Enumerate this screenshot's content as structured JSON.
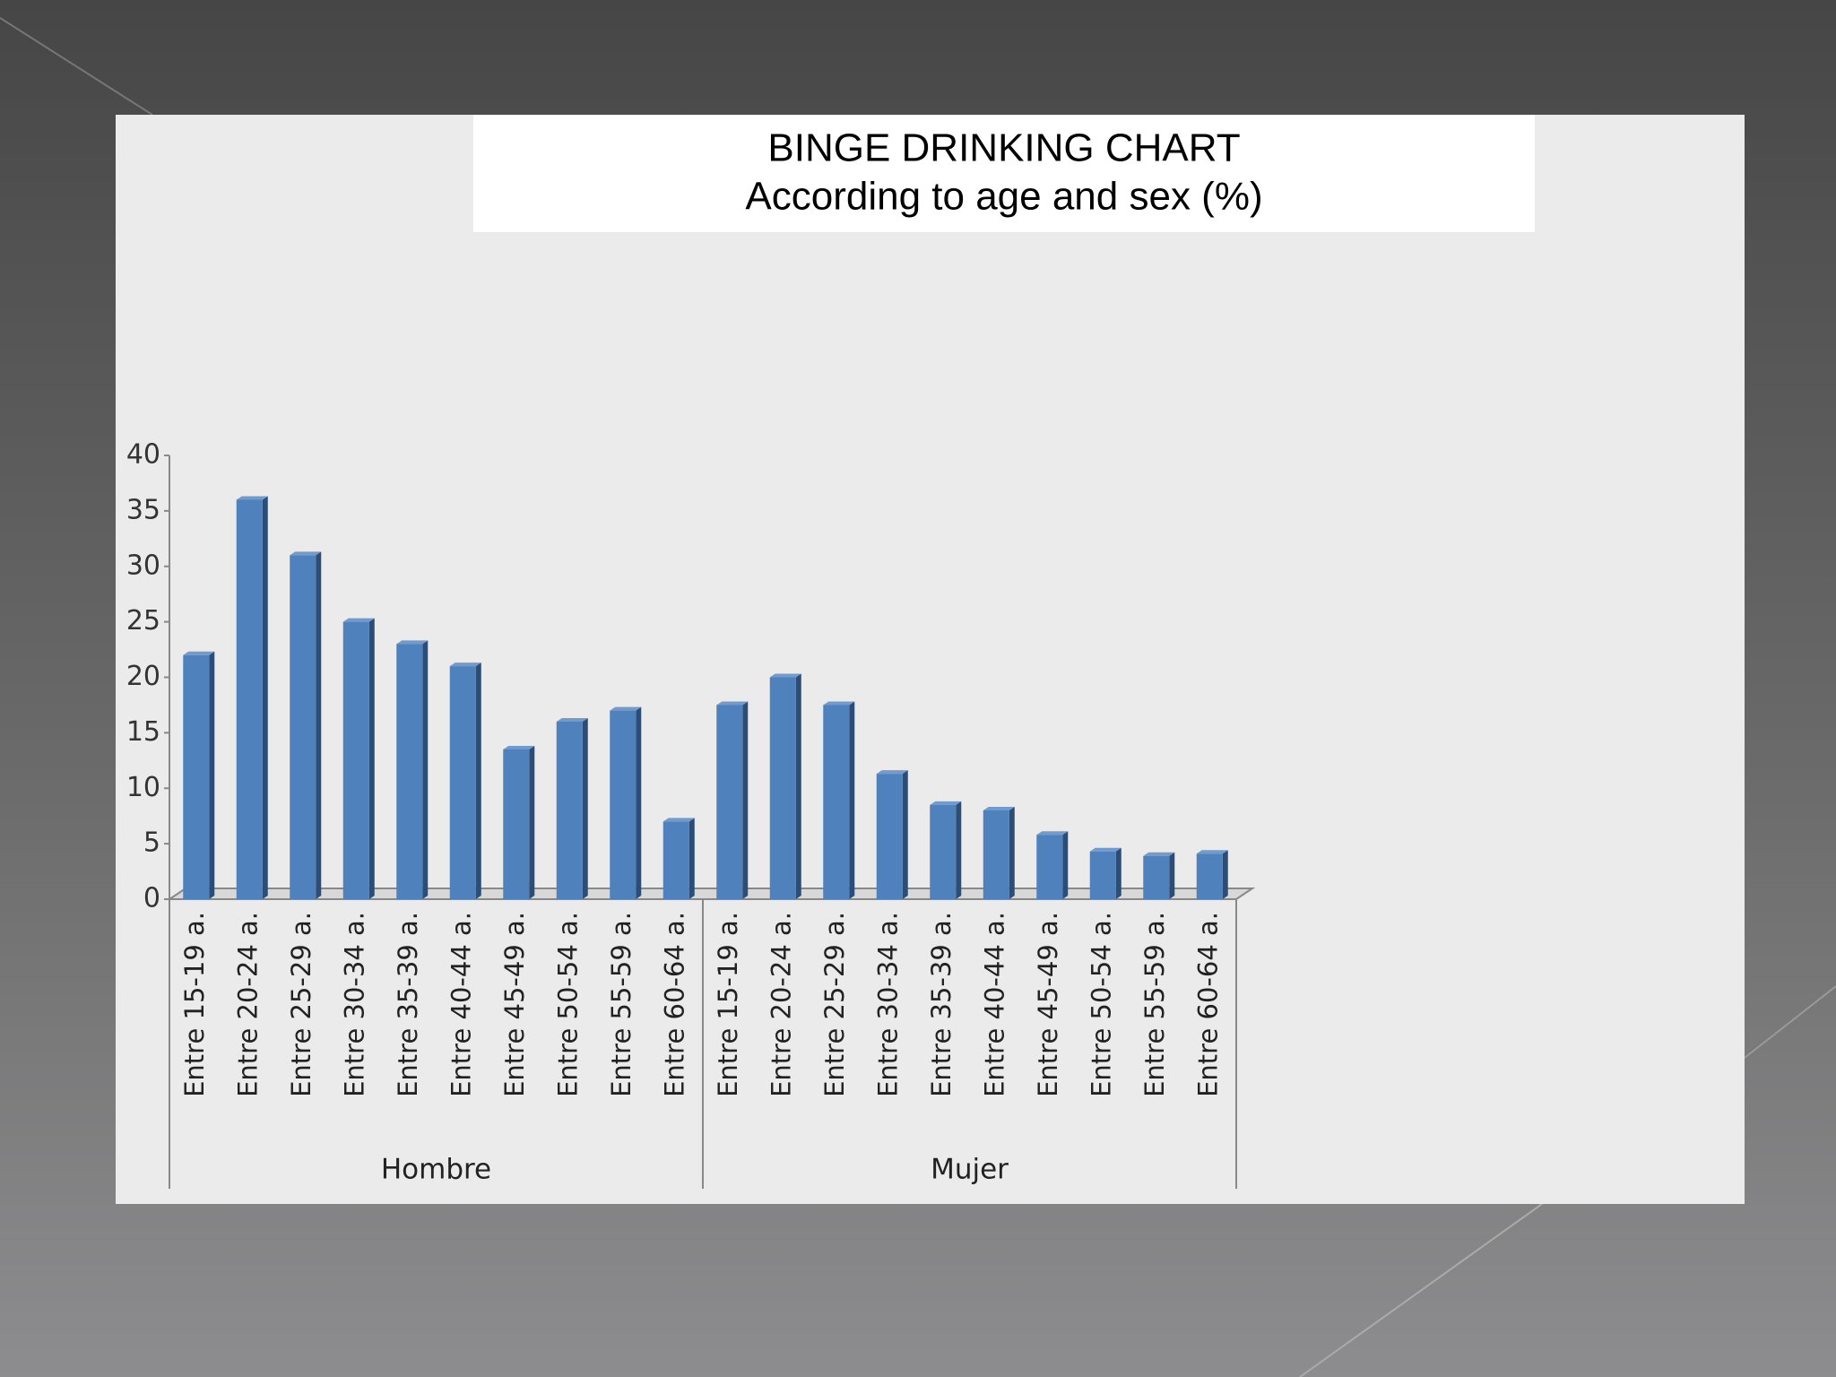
{
  "chart_data": {
    "type": "bar",
    "title": "BINGE DRINKING CHART",
    "subtitle": "According to age and sex (%)",
    "color": "#4f81bd",
    "groups": [
      {
        "label": "Hombre",
        "categories": [
          "Entre 15-19 a.",
          "Entre 20-24 a.",
          "Entre 25-29 a.",
          "Entre 30-34 a.",
          "Entre 35-39 a.",
          "Entre 40-44 a.",
          "Entre 45-49 a.",
          "Entre 50-54 a.",
          "Entre 55-59 a.",
          "Entre 60-64 a."
        ],
        "values": [
          22,
          36,
          31,
          25,
          23,
          21,
          13.5,
          16,
          17,
          7
        ]
      },
      {
        "label": "Mujer",
        "categories": [
          "Entre 15-19 a.",
          "Entre 20-24 a.",
          "Entre 25-29 a.",
          "Entre 30-34 a.",
          "Entre 35-39 a.",
          "Entre 40-44 a.",
          "Entre 45-49 a.",
          "Entre 50-54 a.",
          "Entre 55-59 a.",
          "Entre 60-64 a."
        ],
        "values": [
          17.5,
          20,
          17.5,
          11.3,
          8.5,
          8,
          5.8,
          4.3,
          3.9,
          4.1
        ]
      }
    ],
    "ylim": [
      0,
      40
    ],
    "yticks": [
      0,
      5,
      10,
      15,
      20,
      25,
      30,
      35,
      40
    ]
  }
}
